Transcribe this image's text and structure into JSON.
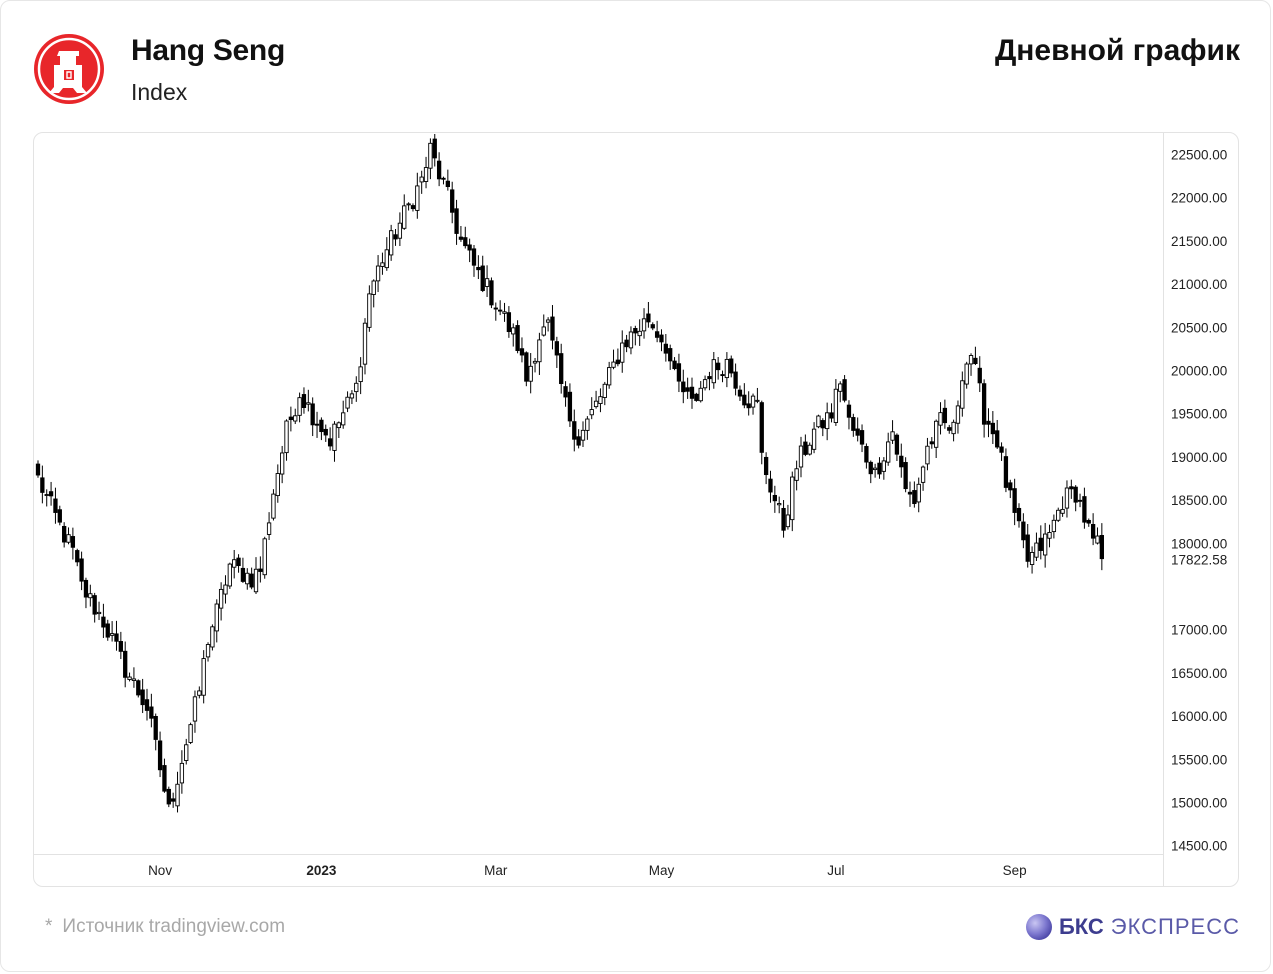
{
  "header": {
    "title": "Hang Seng",
    "subtitle": "Index",
    "right_title": "Дневной график"
  },
  "footer": {
    "star": "*",
    "source": "Источник tradingview.com",
    "brand_bold": "БКС",
    "brand_rest": "ЭКСПРЕСС"
  },
  "colors": {
    "logo_red": "#e8262a",
    "candle": "#000000",
    "brand": "#3d3d8f"
  },
  "icons": {
    "logo": "hang-seng-logo-icon",
    "brand": "bcs-sphere-icon"
  },
  "chart_data": {
    "type": "candlestick",
    "y_ticks": [
      22500,
      22000,
      21500,
      21000,
      20500,
      20000,
      19500,
      19000,
      18500,
      18000,
      17000,
      16500,
      16000,
      15500,
      15000,
      14500
    ],
    "y_tick_labels": [
      "22500.00",
      "22000.00",
      "21500.00",
      "21000.00",
      "20500.00",
      "20000.00",
      "19500.00",
      "19000.00",
      "18500.00",
      "18000.00",
      "17000.00",
      "16500.00",
      "16000.00",
      "15500.00",
      "15000.00",
      "14500.00"
    ],
    "last_price_label": "17822.58",
    "last_price": 17822.58,
    "ylim": [
      14280,
      22700
    ],
    "x_labels": [
      {
        "label": "Nov",
        "bar": 28
      },
      {
        "label": "2023",
        "bar": 65
      },
      {
        "label": "Mar",
        "bar": 105
      },
      {
        "label": "May",
        "bar": 143
      },
      {
        "label": "Jul",
        "bar": 183
      },
      {
        "label": "Sep",
        "bar": 224
      }
    ],
    "bar_count": 245,
    "anchors": [
      [
        0,
        18750
      ],
      [
        5,
        18200
      ],
      [
        8,
        17900
      ],
      [
        10,
        17500
      ],
      [
        15,
        17100
      ],
      [
        20,
        16550
      ],
      [
        25,
        16100
      ],
      [
        28,
        15400
      ],
      [
        30,
        14900
      ],
      [
        34,
        15700
      ],
      [
        37,
        16300
      ],
      [
        39,
        16900
      ],
      [
        41,
        17200
      ],
      [
        44,
        17750
      ],
      [
        49,
        17600
      ],
      [
        51,
        17700
      ],
      [
        54,
        18600
      ],
      [
        57,
        19300
      ],
      [
        60,
        19750
      ],
      [
        63,
        19500
      ],
      [
        67,
        19200
      ],
      [
        70,
        19500
      ],
      [
        73,
        19800
      ],
      [
        76,
        20900
      ],
      [
        79,
        21300
      ],
      [
        84,
        21800
      ],
      [
        88,
        22200
      ],
      [
        90,
        22550
      ],
      [
        94,
        22000
      ],
      [
        97,
        21500
      ],
      [
        100,
        21200
      ],
      [
        106,
        20700
      ],
      [
        110,
        20300
      ],
      [
        112,
        19900
      ],
      [
        115,
        20400
      ],
      [
        117,
        20500
      ],
      [
        121,
        19600
      ],
      [
        124,
        19200
      ],
      [
        127,
        19500
      ],
      [
        130,
        19800
      ],
      [
        134,
        20300
      ],
      [
        138,
        20500
      ],
      [
        140,
        20600
      ],
      [
        144,
        20300
      ],
      [
        146,
        19900
      ],
      [
        150,
        19600
      ],
      [
        154,
        20000
      ],
      [
        158,
        20100
      ],
      [
        162,
        19700
      ],
      [
        165,
        19600
      ],
      [
        166,
        19000
      ],
      [
        169,
        18500
      ],
      [
        171,
        18200
      ],
      [
        174,
        18900
      ],
      [
        178,
        19300
      ],
      [
        182,
        19500
      ],
      [
        184,
        19900
      ],
      [
        186,
        19400
      ],
      [
        190,
        19000
      ],
      [
        192,
        18800
      ],
      [
        196,
        19300
      ],
      [
        199,
        18600
      ],
      [
        201,
        18500
      ],
      [
        204,
        19100
      ],
      [
        207,
        19400
      ],
      [
        210,
        19300
      ],
      [
        212,
        20000
      ],
      [
        214,
        20200
      ],
      [
        217,
        19500
      ],
      [
        220,
        19200
      ],
      [
        222,
        18700
      ],
      [
        224,
        18300
      ],
      [
        227,
        17800
      ],
      [
        229,
        17900
      ],
      [
        232,
        18100
      ],
      [
        235,
        18500
      ],
      [
        238,
        18600
      ],
      [
        240,
        18300
      ],
      [
        242,
        18000
      ],
      [
        245,
        17900
      ],
      [
        247,
        18050
      ],
      [
        250,
        17800
      ],
      [
        252,
        17400
      ],
      [
        255,
        17600
      ],
      [
        258,
        17950
      ],
      [
        262,
        17700
      ],
      [
        266,
        17600
      ]
    ]
  }
}
